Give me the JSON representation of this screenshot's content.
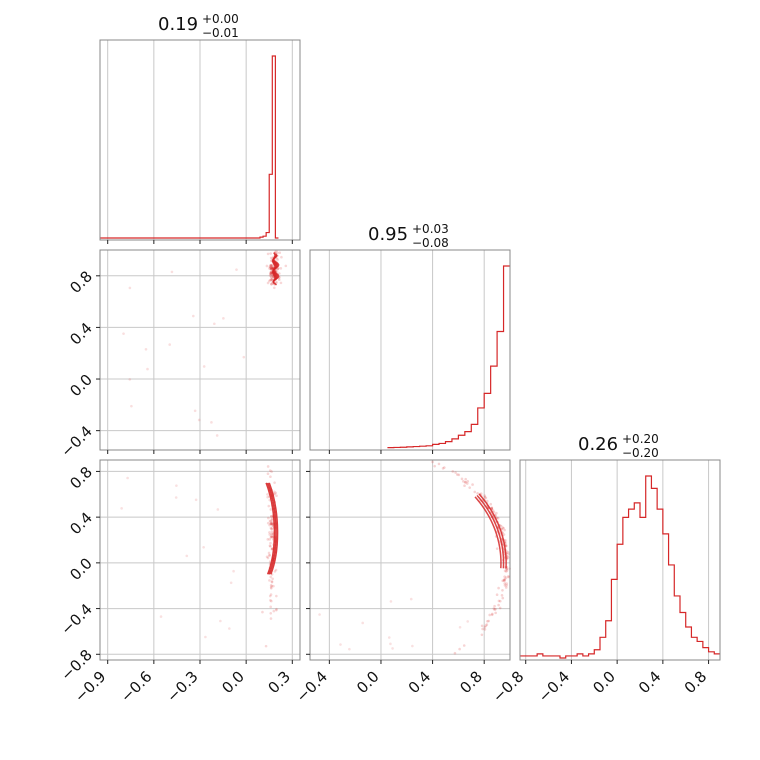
{
  "chart_data": {
    "type": "corner",
    "color": "#d62728",
    "params": [
      {
        "range": [
          -0.95,
          0.35
        ],
        "ticks": [
          "-0.9",
          "-0.6",
          "-0.3",
          "0.0",
          "0.3"
        ],
        "tick_values": [
          -0.9,
          -0.6,
          -0.3,
          0.0,
          0.3
        ]
      },
      {
        "range": [
          -0.55,
          1.0
        ],
        "ticks": [
          "-0.4",
          "0.0",
          "0.4",
          "0.8"
        ],
        "tick_values": [
          -0.4,
          0.0,
          0.4,
          0.8
        ]
      },
      {
        "range": [
          -0.85,
          0.9
        ],
        "ticks": [
          "-0.8",
          "-0.4",
          "0.0",
          "0.4",
          "0.8"
        ],
        "tick_values": [
          -0.8,
          -0.4,
          0.0,
          0.4,
          0.8
        ]
      }
    ],
    "titles": [
      {
        "median": "0.19",
        "plus": "+0.00",
        "minus": "−0.01"
      },
      {
        "median": "0.95",
        "plus": "+0.03",
        "minus": "−0.08"
      },
      {
        "median": "0.26",
        "plus": "+0.20",
        "minus": "−0.20"
      }
    ],
    "hist": [
      {
        "edges": [
          -0.95,
          0.09,
          0.11,
          0.13,
          0.15,
          0.17,
          0.19,
          0.21
        ],
        "counts": [
          0,
          0.5,
          1,
          3,
          35,
          100,
          0
        ]
      },
      {
        "edges": [
          0.05,
          0.1,
          0.15,
          0.2,
          0.25,
          0.3,
          0.35,
          0.4,
          0.45,
          0.5,
          0.55,
          0.6,
          0.65,
          0.7,
          0.75,
          0.8,
          0.85,
          0.9,
          0.95,
          1.0
        ],
        "counts": [
          0.2,
          0.3,
          0.4,
          0.6,
          0.8,
          1,
          1.2,
          2,
          2.5,
          3.5,
          5,
          7,
          9,
          13,
          22,
          30,
          45,
          64,
          100
        ]
      },
      {
        "edges": [
          -0.85,
          -0.8,
          -0.75,
          -0.7,
          -0.65,
          -0.6,
          -0.55,
          -0.5,
          -0.45,
          -0.4,
          -0.35,
          -0.3,
          -0.25,
          -0.2,
          -0.15,
          -0.1,
          -0.05,
          0.0,
          0.05,
          0.1,
          0.15,
          0.2,
          0.25,
          0.3,
          0.35,
          0.4,
          0.45,
          0.5,
          0.55,
          0.6,
          0.65,
          0.7,
          0.75,
          0.8,
          0.85,
          0.9
        ],
        "counts": [
          1,
          1,
          1,
          2,
          1,
          1,
          1,
          0,
          1,
          1,
          2,
          1,
          2,
          4,
          10,
          18,
          38,
          55,
          68,
          72,
          75,
          68,
          88,
          82,
          72,
          60,
          45,
          30,
          22,
          15,
          10,
          8,
          5,
          3,
          2
        ]
      }
    ],
    "scatter_xy": {
      "ranges": [
        [
          -0.95,
          0.35
        ],
        [
          -0.55,
          1.0
        ]
      ]
    },
    "scatter_xz": {
      "ranges": [
        [
          -0.95,
          0.35
        ],
        [
          -0.85,
          0.9
        ]
      ]
    },
    "scatter_yz": {
      "ranges": [
        [
          -0.55,
          1.0
        ],
        [
          -0.85,
          0.9
        ]
      ]
    }
  }
}
